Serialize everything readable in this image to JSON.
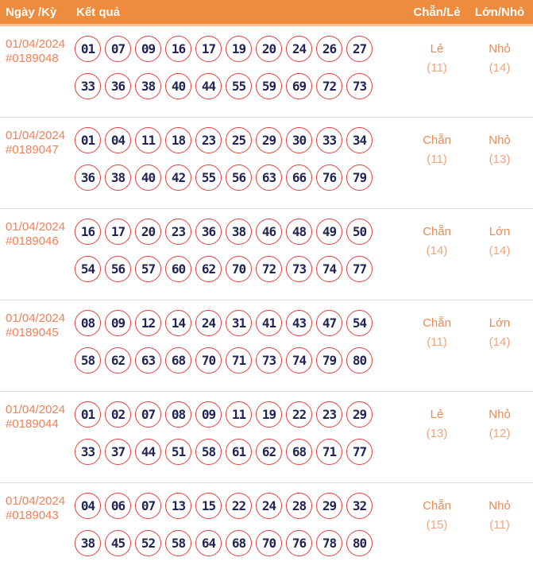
{
  "header": {
    "col_date": "Ngày /Kỳ",
    "col_result": "Kết quả",
    "col_parity": "Chẵn/Lẻ",
    "col_size": "Lớn/Nhỏ"
  },
  "colors": {
    "header_bg": "#EE8B3D",
    "header_border": "#F6BE92",
    "header_text": "#FFFFFF",
    "date_text": "#F08159",
    "ball_border": "#E2403D",
    "ball_text": "#212555",
    "value_text": "#EC8A52",
    "count_text": "#F2A47C",
    "divider": "#DCDCDC",
    "page_bg": "#FFFFFF"
  },
  "rows": [
    {
      "date": "01/04/2024",
      "draw_id": "#0189048",
      "numbers_line1": [
        "01",
        "07",
        "09",
        "16",
        "17",
        "19",
        "20",
        "24",
        "26",
        "27"
      ],
      "numbers_line2": [
        "33",
        "36",
        "38",
        "40",
        "44",
        "55",
        "59",
        "69",
        "72",
        "73"
      ],
      "parity": "Lẻ",
      "parity_count": "(11)",
      "size": "Nhỏ",
      "size_count": "(14)"
    },
    {
      "date": "01/04/2024",
      "draw_id": "#0189047",
      "numbers_line1": [
        "01",
        "04",
        "11",
        "18",
        "23",
        "25",
        "29",
        "30",
        "33",
        "34"
      ],
      "numbers_line2": [
        "36",
        "38",
        "40",
        "42",
        "55",
        "56",
        "63",
        "66",
        "76",
        "79"
      ],
      "parity": "Chẵn",
      "parity_count": "(11)",
      "size": "Nhỏ",
      "size_count": "(13)"
    },
    {
      "date": "01/04/2024",
      "draw_id": "#0189046",
      "numbers_line1": [
        "16",
        "17",
        "20",
        "23",
        "36",
        "38",
        "46",
        "48",
        "49",
        "50"
      ],
      "numbers_line2": [
        "54",
        "56",
        "57",
        "60",
        "62",
        "70",
        "72",
        "73",
        "74",
        "77"
      ],
      "parity": "Chẵn",
      "parity_count": "(14)",
      "size": "Lớn",
      "size_count": "(14)"
    },
    {
      "date": "01/04/2024",
      "draw_id": "#0189045",
      "numbers_line1": [
        "08",
        "09",
        "12",
        "14",
        "24",
        "31",
        "41",
        "43",
        "47",
        "54"
      ],
      "numbers_line2": [
        "58",
        "62",
        "63",
        "68",
        "70",
        "71",
        "73",
        "74",
        "79",
        "80"
      ],
      "parity": "Chẵn",
      "parity_count": "(11)",
      "size": "Lớn",
      "size_count": "(14)"
    },
    {
      "date": "01/04/2024",
      "draw_id": "#0189044",
      "numbers_line1": [
        "01",
        "02",
        "07",
        "08",
        "09",
        "11",
        "19",
        "22",
        "23",
        "29"
      ],
      "numbers_line2": [
        "33",
        "37",
        "44",
        "51",
        "58",
        "61",
        "62",
        "68",
        "71",
        "77"
      ],
      "parity": "Lẻ",
      "parity_count": "(13)",
      "size": "Nhỏ",
      "size_count": "(12)"
    },
    {
      "date": "01/04/2024",
      "draw_id": "#0189043",
      "numbers_line1": [
        "04",
        "06",
        "07",
        "13",
        "15",
        "22",
        "24",
        "28",
        "29",
        "32"
      ],
      "numbers_line2": [
        "38",
        "45",
        "52",
        "58",
        "64",
        "68",
        "70",
        "76",
        "78",
        "80"
      ],
      "parity": "Chẵn",
      "parity_count": "(15)",
      "size": "Nhỏ",
      "size_count": "(11)"
    }
  ]
}
